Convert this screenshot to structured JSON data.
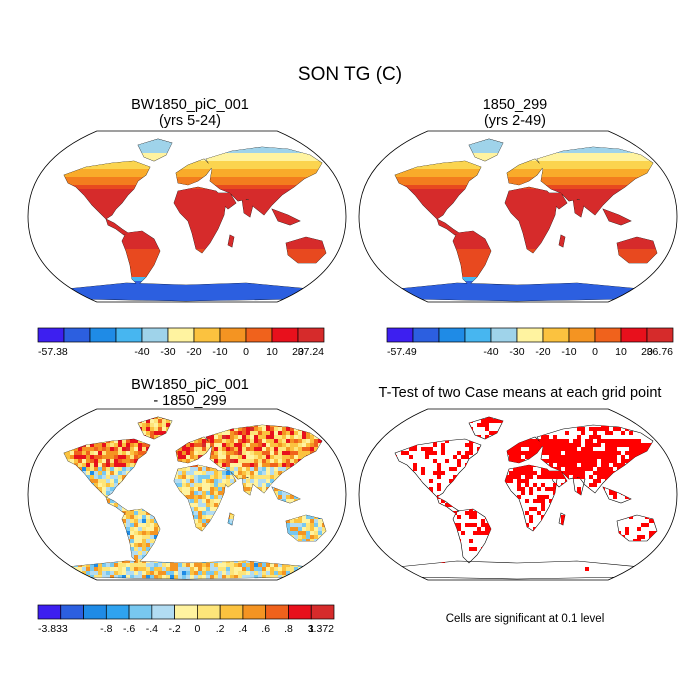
{
  "figure_title": "SON TG (C)",
  "note": "Cells are significant at 0.1 level",
  "colors": {
    "land_warm": [
      "#d62b2b",
      "#e8491f",
      "#f37d1e",
      "#f9ab2a",
      "#fbd44f",
      "#fff3a0"
    ],
    "land_cold": [
      "#9fd3ea",
      "#47b6f0",
      "#1f8be6",
      "#2c5fe0",
      "#3d1ff0"
    ],
    "ttest": "#ff0000"
  },
  "chart_data": [
    {
      "type": "heatmap",
      "title": "BW1850_piC_001",
      "subtitle": "(yrs 5-24)",
      "projection": "robinson",
      "colorbar": {
        "min_label": "-57.38",
        "max_label": "37.24",
        "ticks": [
          "-40",
          "-30",
          "-20",
          "-10",
          "0",
          "10",
          "20"
        ],
        "colors": [
          "#3d1ff0",
          "#2c5fe0",
          "#1f8be6",
          "#47b6f0",
          "#9fd3ea",
          "#fff3a0",
          "#fbc23f",
          "#f49422",
          "#f0621c",
          "#e8101c",
          "#d62b2b"
        ]
      }
    },
    {
      "type": "heatmap",
      "title": "1850_299",
      "subtitle": "(yrs 2-49)",
      "projection": "robinson",
      "colorbar": {
        "min_label": "-57.49",
        "max_label": "36.76",
        "ticks": [
          "-40",
          "-30",
          "-20",
          "-10",
          "0",
          "10",
          "20"
        ],
        "colors": [
          "#3d1ff0",
          "#2c5fe0",
          "#1f8be6",
          "#47b6f0",
          "#9fd3ea",
          "#fff3a0",
          "#fbc23f",
          "#f49422",
          "#f0621c",
          "#e8101c",
          "#d62b2b"
        ]
      }
    },
    {
      "type": "heatmap",
      "title": "BW1850_piC_001",
      "subtitle": "- 1850_299",
      "projection": "robinson",
      "colorbar": {
        "min_label": "-3.833",
        "max_label": "3.372",
        "ticks": [
          "-.8",
          "-.6",
          "-.4",
          "-.2",
          "0",
          ".2",
          ".4",
          ".6",
          ".8",
          "1"
        ],
        "colors": [
          "#3d1ff0",
          "#2c5fe0",
          "#1f8be6",
          "#2fa3f0",
          "#78c8f0",
          "#b2dcf2",
          "#fff3a0",
          "#fde57a",
          "#fbc23f",
          "#f49422",
          "#f0621c",
          "#e8101c",
          "#d62b2b"
        ]
      }
    },
    {
      "type": "heatmap",
      "title": "T-Test of two Case means at each grid point",
      "projection": "robinson",
      "significance_level": 0.1
    }
  ]
}
